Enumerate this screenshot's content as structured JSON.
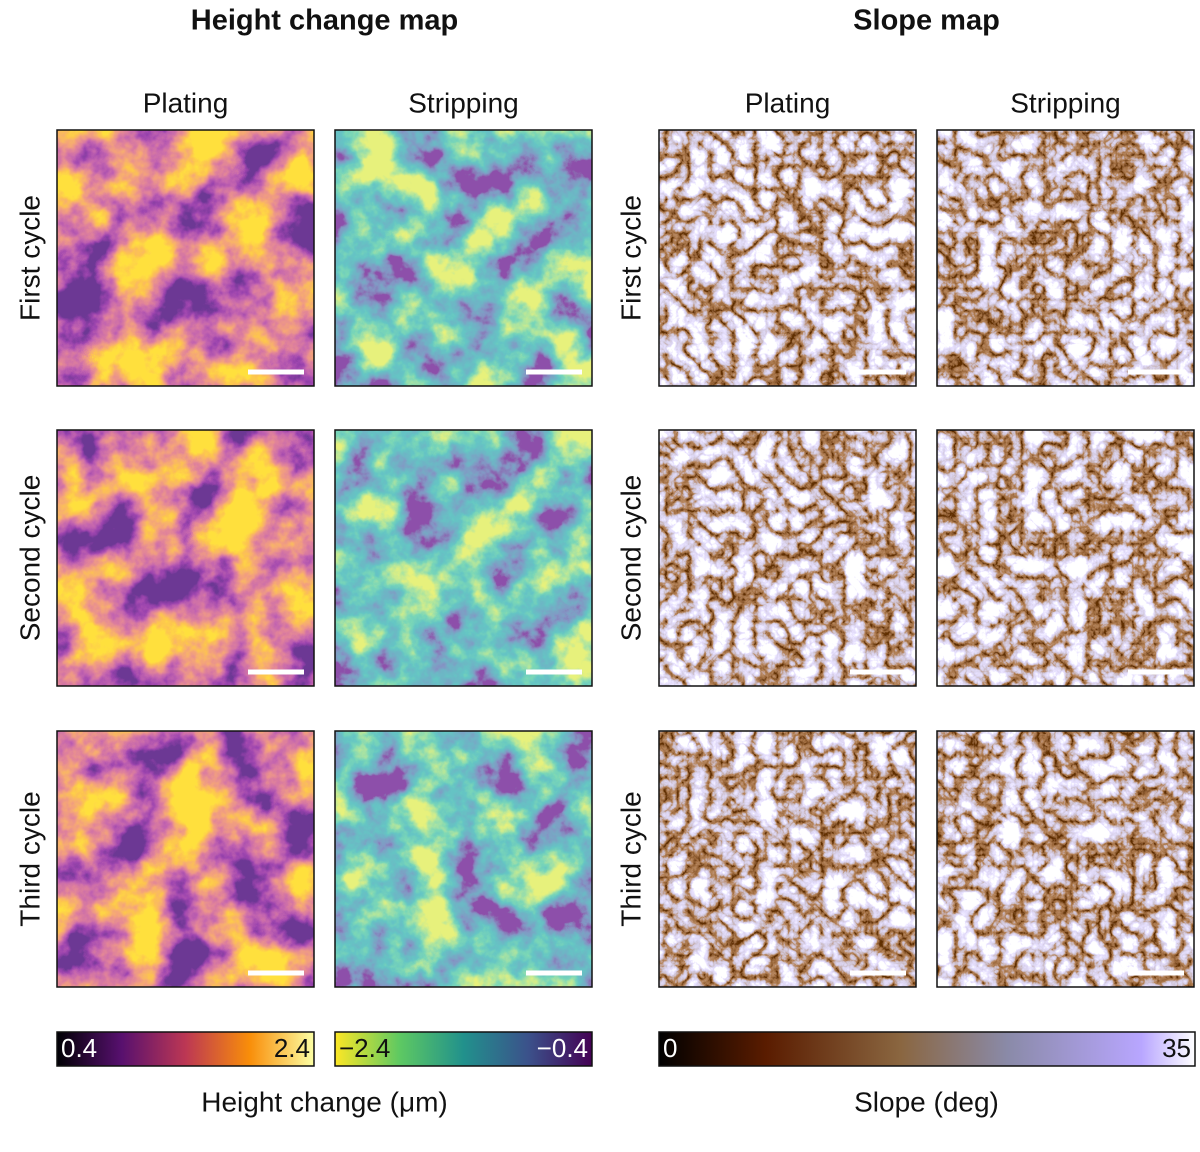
{
  "sections": [
    {
      "title": "Height change map",
      "columns": [
        "Plating",
        "Stripping"
      ],
      "rows": [
        "First cycle",
        "Second cycle",
        "Third cycle"
      ],
      "colorbars": [
        {
          "min": "0.4",
          "max": "2.4"
        },
        {
          "min": "−2.4",
          "max": "−0.4"
        }
      ],
      "axis_label": "Height change (μm)"
    },
    {
      "title": "Slope map",
      "columns": [
        "Plating",
        "Stripping"
      ],
      "rows": [
        "First cycle",
        "Second cycle",
        "Third cycle"
      ],
      "colorbars": [
        {
          "min": "0",
          "max": "35"
        }
      ],
      "axis_label": "Slope (deg)"
    }
  ]
}
